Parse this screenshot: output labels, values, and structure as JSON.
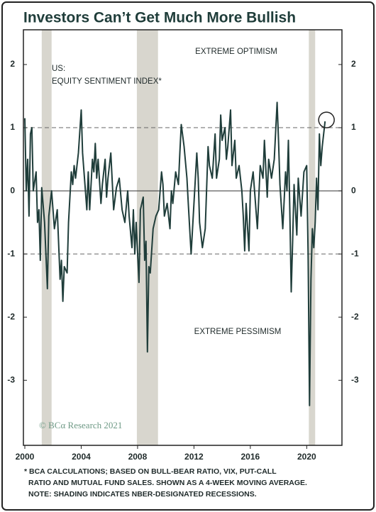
{
  "chart_data": {
    "type": "line",
    "title": "Investors Can’t Get Much More Bullish",
    "annotations": [
      "EXTREME OPTIMISM",
      "US:",
      "EQUITY SENTIMENT INDEX*",
      "EXTREME PESSIMISM"
    ],
    "source": "© BCα Research 2021",
    "footnote": [
      "* BCA CALCULATIONS; BASED ON BULL-BEAR RATIO, VIX, PUT-CALL",
      "RATIO AND MUTUAL FUND SALES. SHOWN AS A 4-WEEK MOVING AVERAGE.",
      "NOTE: SHADING INDICATES NBER-DESIGNATED RECESSIONS."
    ],
    "color": "#1f3d3a",
    "x": [
      2000.0,
      2000.1,
      2000.2,
      2000.3,
      2000.4,
      2000.5,
      2000.6,
      2000.8,
      2000.9,
      2001.0,
      2001.1,
      2001.2,
      2001.4,
      2001.6,
      2001.7,
      2001.9,
      2002.1,
      2002.3,
      2002.5,
      2002.6,
      2002.7,
      2002.8,
      2003.0,
      2003.1,
      2003.3,
      2003.4,
      2003.5,
      2003.6,
      2003.8,
      2004.0,
      2004.1,
      2004.2,
      2004.4,
      2004.5,
      2004.6,
      2004.8,
      2004.9,
      2005.0,
      2005.1,
      2005.2,
      2005.4,
      2005.5,
      2005.7,
      2005.8,
      2005.9,
      2006.1,
      2006.3,
      2006.5,
      2006.7,
      2006.9,
      2007.1,
      2007.3,
      2007.4,
      2007.6,
      2007.7,
      2007.8,
      2007.9,
      2008.1,
      2008.2,
      2008.4,
      2008.5,
      2008.6,
      2008.7,
      2008.8,
      2008.9,
      2009.1,
      2009.3,
      2009.5,
      2009.7,
      2009.8,
      2009.9,
      2010.1,
      2010.3,
      2010.4,
      2010.5,
      2010.7,
      2010.9,
      2011.0,
      2011.1,
      2011.3,
      2011.5,
      2011.6,
      2011.8,
      2011.9,
      2012.0,
      2012.2,
      2012.3,
      2012.4,
      2012.6,
      2012.8,
      2013.0,
      2013.1,
      2013.3,
      2013.5,
      2013.6,
      2013.8,
      2013.9,
      2014.0,
      2014.2,
      2014.3,
      2014.4,
      2014.6,
      2014.7,
      2014.9,
      2015.0,
      2015.2,
      2015.4,
      2015.5,
      2015.6,
      2015.7,
      2015.9,
      2016.0,
      2016.2,
      2016.3,
      2016.5,
      2016.7,
      2016.9,
      2017.0,
      2017.2,
      2017.3,
      2017.5,
      2017.7,
      2017.9,
      2018.0,
      2018.1,
      2018.3,
      2018.5,
      2018.6,
      2018.7,
      2018.8,
      2018.9,
      2019.0,
      2019.1,
      2019.3,
      2019.4,
      2019.6,
      2019.8,
      2020.0,
      2020.1,
      2020.2,
      2020.3,
      2020.4,
      2020.5,
      2020.6,
      2020.7,
      2020.8,
      2020.9,
      2021.0,
      2021.1,
      2021.3
    ],
    "values": [
      1.15,
      0.0,
      0.5,
      -0.4,
      0.9,
      1.0,
      0.0,
      0.3,
      -0.5,
      -0.3,
      -1.1,
      0.05,
      -0.5,
      -1.55,
      -0.4,
      0.0,
      -0.6,
      -0.3,
      -1.4,
      -1.1,
      -1.75,
      -1.2,
      -1.3,
      -0.5,
      0.3,
      0.1,
      0.4,
      0.2,
      0.6,
      1.28,
      0.6,
      0.3,
      -0.3,
      0.3,
      -0.3,
      0.5,
      0.3,
      0.75,
      0.2,
      0.5,
      -0.2,
      0.1,
      0.5,
      -0.1,
      0.2,
      0.6,
      -0.3,
      0.05,
      0.2,
      -0.3,
      -0.5,
      0.0,
      -0.4,
      -0.9,
      -0.3,
      -1.0,
      -0.5,
      -1.45,
      -0.3,
      -0.1,
      -1.1,
      -0.8,
      -2.55,
      -1.2,
      -1.3,
      -0.6,
      -0.4,
      -0.3,
      0.3,
      0.1,
      -0.4,
      -0.2,
      -0.6,
      0.0,
      -0.2,
      0.3,
      0.1,
      0.6,
      1.05,
      0.7,
      0.2,
      -0.2,
      -1.0,
      -0.6,
      -0.2,
      0.6,
      0.2,
      -0.5,
      -0.9,
      -0.6,
      0.7,
      0.4,
      0.2,
      0.9,
      0.2,
      0.5,
      1.2,
      0.8,
      1.0,
      0.5,
      0.7,
      1.28,
      0.4,
      0.8,
      0.2,
      0.4,
      0.0,
      -0.4,
      -0.95,
      -0.2,
      -0.95,
      0.0,
      0.3,
      0.0,
      -0.6,
      0.4,
      0.2,
      0.8,
      -0.1,
      0.5,
      0.2,
      0.5,
      1.4,
      0.8,
      0.1,
      -0.6,
      0.3,
      0.0,
      0.8,
      -0.3,
      -1.6,
      -0.8,
      0.1,
      -0.7,
      0.2,
      -0.4,
      0.3,
      0.4,
      -1.0,
      -3.4,
      -1.4,
      -0.6,
      -0.9,
      -0.5,
      0.2,
      -0.3,
      0.9,
      0.4,
      0.7,
      1.1
    ],
    "recessions": [
      [
        2001.2,
        2001.9
      ],
      [
        2007.95,
        2009.45
      ],
      [
        2020.15,
        2020.6
      ]
    ],
    "xlim": [
      1999.9,
      2022.5
    ],
    "xticks": [
      2000,
      2004,
      2008,
      2012,
      2016,
      2020
    ],
    "ylim": [
      -4.03,
      2.55
    ],
    "yticks": [
      -3,
      -2,
      -1,
      0,
      1,
      2
    ],
    "dashed_lines": [
      1,
      -1
    ]
  }
}
